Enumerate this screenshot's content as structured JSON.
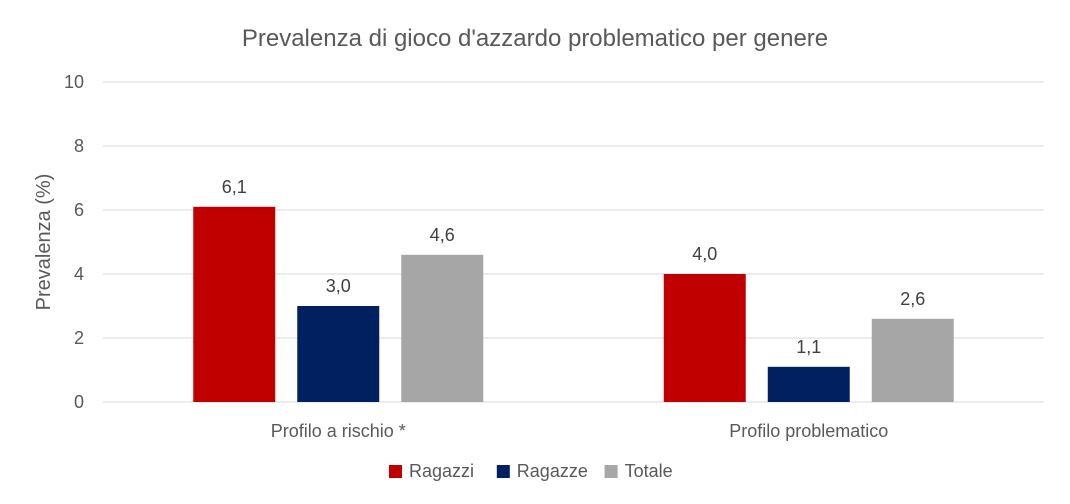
{
  "chart_data": {
    "type": "bar",
    "title": "Prevalenza di gioco d'azzardo problematico per genere",
    "ylabel": "Prevalenza (%)",
    "xlabel": "",
    "categories": [
      "Profilo a rischio *",
      "Profilo problematico"
    ],
    "series": [
      {
        "name": "Ragazzi",
        "values": [
          6.1,
          4.0
        ],
        "labels": [
          "6,1",
          "4,0"
        ],
        "color": "#c00000"
      },
      {
        "name": "Ragazze",
        "values": [
          3.0,
          1.1
        ],
        "labels": [
          "3,0",
          "1,1"
        ],
        "color": "#002060"
      },
      {
        "name": "Totale",
        "values": [
          4.6,
          2.6
        ],
        "labels": [
          "4,6",
          "2,6"
        ],
        "color": "#a6a6a6"
      }
    ],
    "ylim": [
      0,
      10
    ],
    "yticks": [
      0,
      2,
      4,
      6,
      8,
      10
    ],
    "ytick_labels": [
      "0",
      "2",
      "4",
      "6",
      "8",
      "10"
    ],
    "grid": true,
    "legend_position": "bottom"
  }
}
